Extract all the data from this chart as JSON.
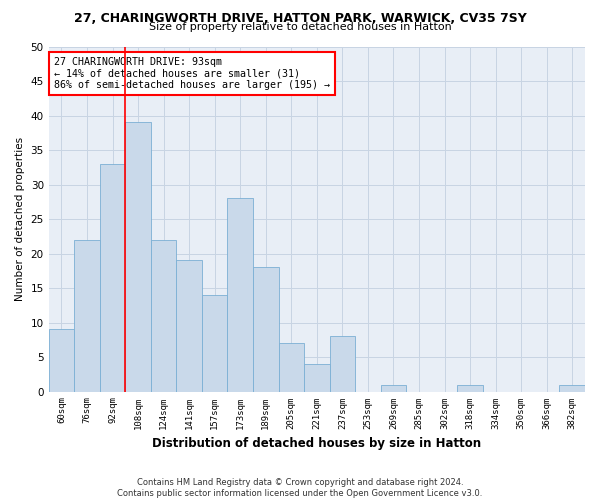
{
  "title1": "27, CHARINGWORTH DRIVE, HATTON PARK, WARWICK, CV35 7SY",
  "title2": "Size of property relative to detached houses in Hatton",
  "xlabel": "Distribution of detached houses by size in Hatton",
  "ylabel": "Number of detached properties",
  "categories": [
    "60sqm",
    "76sqm",
    "92sqm",
    "108sqm",
    "124sqm",
    "141sqm",
    "157sqm",
    "173sqm",
    "189sqm",
    "205sqm",
    "221sqm",
    "237sqm",
    "253sqm",
    "269sqm",
    "285sqm",
    "302sqm",
    "318sqm",
    "334sqm",
    "350sqm",
    "366sqm",
    "382sqm"
  ],
  "values": [
    9,
    22,
    33,
    39,
    22,
    19,
    14,
    28,
    18,
    7,
    4,
    8,
    0,
    1,
    0,
    0,
    1,
    0,
    0,
    0,
    1
  ],
  "bar_color": "#c9d9ea",
  "bar_edge_color": "#7bafd4",
  "bar_width": 1.0,
  "property_line_index": 2,
  "annotation_text": "27 CHARINGWORTH DRIVE: 93sqm\n← 14% of detached houses are smaller (31)\n86% of semi-detached houses are larger (195) →",
  "annotation_box_color": "white",
  "annotation_box_edge_color": "red",
  "vline_color": "red",
  "ylim": [
    0,
    50
  ],
  "yticks": [
    0,
    5,
    10,
    15,
    20,
    25,
    30,
    35,
    40,
    45,
    50
  ],
  "grid_color": "#c8d4e3",
  "background_color": "#e8eef6",
  "footer_line1": "Contains HM Land Registry data © Crown copyright and database right 2024.",
  "footer_line2": "Contains public sector information licensed under the Open Government Licence v3.0."
}
